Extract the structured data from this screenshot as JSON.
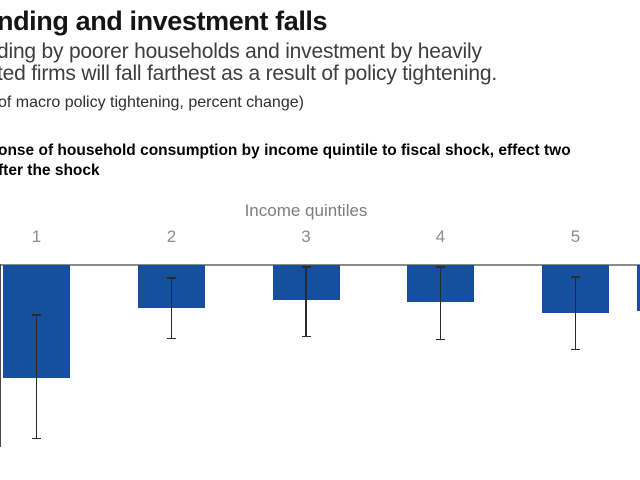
{
  "header": {
    "title": "nding and investment falls",
    "subtitle_line1": "ding by poorer households and investment by heavily",
    "subtitle_line2": "ted firms will fall farthest as a result of policy tightening.",
    "unit_note": "of macro policy tightening, percent change)"
  },
  "panel_note": {
    "line1": "onse of household consumption by income quintile to fiscal shock, effect two",
    "line2": "fter the shock"
  },
  "chart_data": {
    "type": "bar",
    "title": "",
    "x_axis_label": "Income quintiles",
    "ylabel": "",
    "categories": [
      "1",
      "2",
      "3",
      "4",
      "5"
    ],
    "values": [
      -1.13,
      -0.43,
      -0.35,
      -0.37,
      -0.48
    ],
    "error_bars": [
      {
        "low": -1.74,
        "high": -0.49
      },
      {
        "low": -0.74,
        "high": -0.12
      },
      {
        "low": -0.72,
        "high": -0.01
      },
      {
        "low": -0.75,
        "high": -0.01
      },
      {
        "low": -0.85,
        "high": -0.11
      }
    ],
    "ylim_estimated": [
      -2.0,
      0
    ],
    "y_axis_ticks_visible": false,
    "grid": false,
    "legend": false,
    "bar_color": "#154f9e",
    "axis_color": "#8a8a8a",
    "y_axis_stub_color": "#4a4a4a",
    "errorbar_color": "#2b2b2b",
    "clipped_bar_on_right": true
  }
}
